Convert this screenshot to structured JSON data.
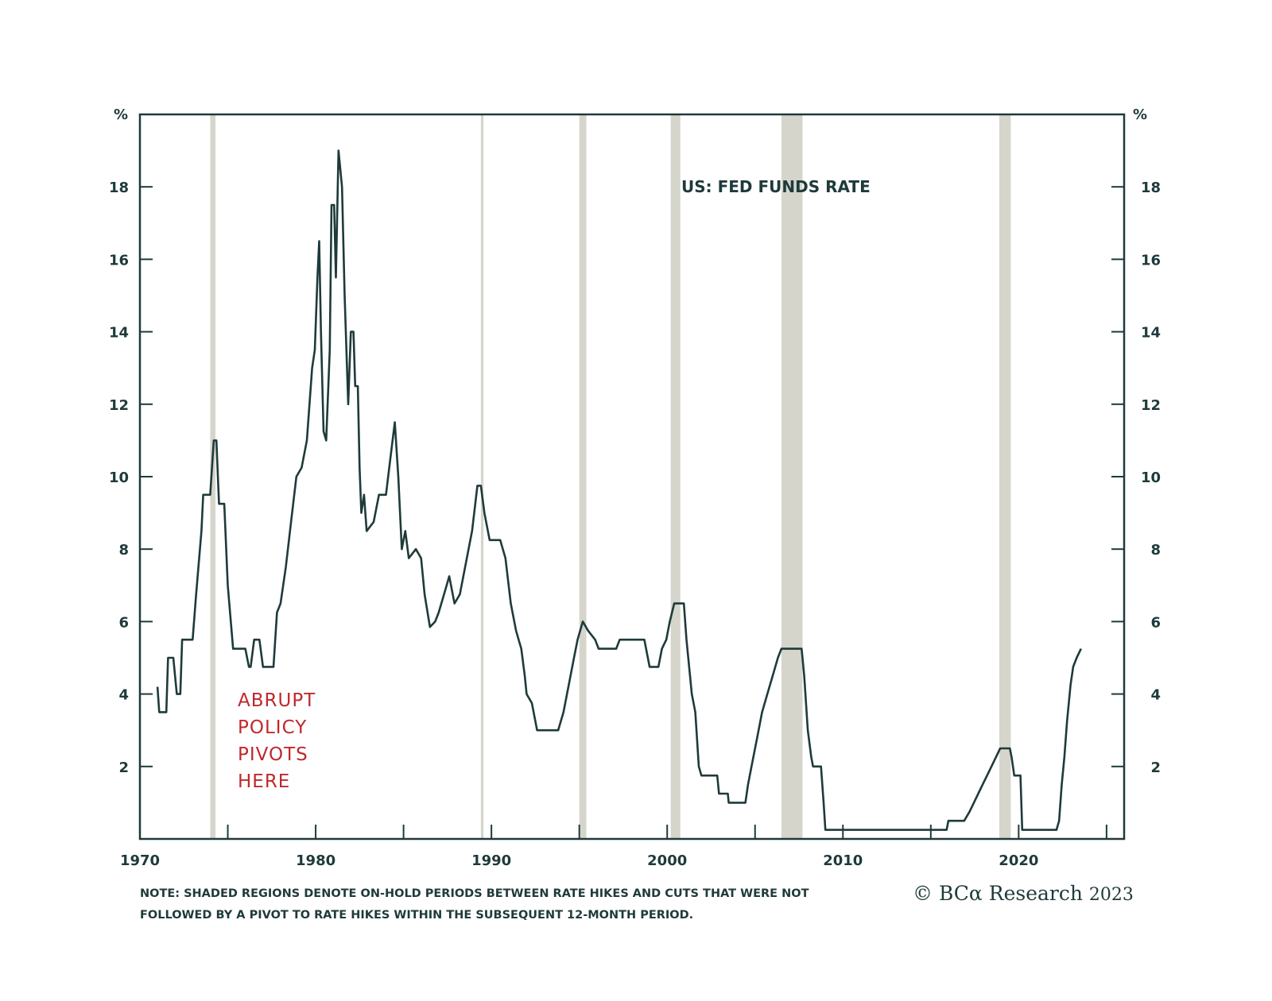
{
  "chart_data": {
    "type": "line",
    "title": "US: FED FUNDS RATE",
    "y_unit_left": "%",
    "y_unit_right": "%",
    "xlim": [
      1970,
      2026
    ],
    "ylim": [
      0,
      20
    ],
    "x_ticks": [
      1970,
      1980,
      1990,
      2000,
      2010,
      2020
    ],
    "y_ticks": [
      2,
      4,
      6,
      8,
      10,
      12,
      14,
      16,
      18
    ],
    "grid": false,
    "colors": {
      "line": "#1f3a3a",
      "shade": "#d5d5cc",
      "annotation": "#c0282d",
      "axis": "#1f3a3a"
    },
    "annotation": [
      "ABRUPT",
      "POLICY",
      "PIVOTS",
      "HERE"
    ],
    "shaded_periods": [
      {
        "start": 1974.0,
        "end": 1974.3
      },
      {
        "start": 1989.4,
        "end": 1989.55
      },
      {
        "start": 1995.0,
        "end": 1995.4
      },
      {
        "start": 2000.2,
        "end": 2000.75
      },
      {
        "start": 2006.5,
        "end": 2007.7
      },
      {
        "start": 2018.9,
        "end": 2019.55
      }
    ],
    "series": [
      {
        "name": "",
        "points": [
          [
            1971.0,
            4.2
          ],
          [
            1971.1,
            3.5
          ],
          [
            1971.5,
            3.5
          ],
          [
            1971.6,
            5.0
          ],
          [
            1971.9,
            5.0
          ],
          [
            1972.1,
            4.0
          ],
          [
            1972.3,
            4.0
          ],
          [
            1972.4,
            5.5
          ],
          [
            1973.0,
            5.5
          ],
          [
            1973.2,
            6.75
          ],
          [
            1973.5,
            8.5
          ],
          [
            1973.6,
            9.5
          ],
          [
            1974.0,
            9.5
          ],
          [
            1974.2,
            11.0
          ],
          [
            1974.35,
            11.0
          ],
          [
            1974.5,
            9.25
          ],
          [
            1974.8,
            9.25
          ],
          [
            1975.0,
            7.0
          ],
          [
            1975.3,
            5.25
          ],
          [
            1976.0,
            5.25
          ],
          [
            1976.2,
            4.75
          ],
          [
            1976.3,
            4.75
          ],
          [
            1976.5,
            5.5
          ],
          [
            1976.8,
            5.5
          ],
          [
            1977.0,
            4.75
          ],
          [
            1977.6,
            4.75
          ],
          [
            1977.8,
            6.25
          ],
          [
            1978.0,
            6.5
          ],
          [
            1978.3,
            7.5
          ],
          [
            1978.6,
            8.75
          ],
          [
            1978.9,
            10.0
          ],
          [
            1979.2,
            10.25
          ],
          [
            1979.5,
            11.0
          ],
          [
            1979.8,
            13.0
          ],
          [
            1979.95,
            13.5
          ],
          [
            1980.1,
            15.5
          ],
          [
            1980.2,
            16.5
          ],
          [
            1980.3,
            14.0
          ],
          [
            1980.45,
            11.25
          ],
          [
            1980.6,
            11.0
          ],
          [
            1980.8,
            13.5
          ],
          [
            1980.9,
            17.5
          ],
          [
            1981.05,
            17.5
          ],
          [
            1981.15,
            15.5
          ],
          [
            1981.3,
            19.0
          ],
          [
            1981.5,
            18.0
          ],
          [
            1981.65,
            15.0
          ],
          [
            1981.85,
            12.0
          ],
          [
            1982.0,
            14.0
          ],
          [
            1982.15,
            14.0
          ],
          [
            1982.25,
            12.5
          ],
          [
            1982.4,
            12.5
          ],
          [
            1982.5,
            10.25
          ],
          [
            1982.6,
            9.0
          ],
          [
            1982.75,
            9.5
          ],
          [
            1982.9,
            8.5
          ],
          [
            1983.3,
            8.75
          ],
          [
            1983.6,
            9.5
          ],
          [
            1984.0,
            9.5
          ],
          [
            1984.25,
            10.5
          ],
          [
            1984.5,
            11.5
          ],
          [
            1984.7,
            10.0
          ],
          [
            1984.9,
            8.0
          ],
          [
            1985.1,
            8.5
          ],
          [
            1985.3,
            7.75
          ],
          [
            1985.7,
            8.0
          ],
          [
            1986.0,
            7.75
          ],
          [
            1986.2,
            6.75
          ],
          [
            1986.5,
            5.85
          ],
          [
            1986.8,
            6.0
          ],
          [
            1987.0,
            6.25
          ],
          [
            1987.3,
            6.75
          ],
          [
            1987.6,
            7.25
          ],
          [
            1987.9,
            6.5
          ],
          [
            1988.2,
            6.75
          ],
          [
            1988.6,
            7.75
          ],
          [
            1988.9,
            8.5
          ],
          [
            1989.2,
            9.75
          ],
          [
            1989.4,
            9.75
          ],
          [
            1989.6,
            9.0
          ],
          [
            1989.9,
            8.25
          ],
          [
            1990.5,
            8.25
          ],
          [
            1990.8,
            7.75
          ],
          [
            1991.1,
            6.5
          ],
          [
            1991.4,
            5.75
          ],
          [
            1991.7,
            5.25
          ],
          [
            1991.9,
            4.5
          ],
          [
            1992.0,
            4.0
          ],
          [
            1992.3,
            3.75
          ],
          [
            1992.6,
            3.0
          ],
          [
            1993.8,
            3.0
          ],
          [
            1994.1,
            3.5
          ],
          [
            1994.4,
            4.25
          ],
          [
            1994.7,
            5.0
          ],
          [
            1994.9,
            5.5
          ],
          [
            1995.2,
            6.0
          ],
          [
            1995.5,
            5.75
          ],
          [
            1995.9,
            5.5
          ],
          [
            1996.1,
            5.25
          ],
          [
            1997.1,
            5.25
          ],
          [
            1997.3,
            5.5
          ],
          [
            1998.7,
            5.5
          ],
          [
            1998.9,
            5.0
          ],
          [
            1999.0,
            4.75
          ],
          [
            1999.5,
            4.75
          ],
          [
            1999.7,
            5.25
          ],
          [
            1999.95,
            5.5
          ],
          [
            2000.15,
            6.0
          ],
          [
            2000.4,
            6.5
          ],
          [
            2000.95,
            6.5
          ],
          [
            2001.1,
            5.5
          ],
          [
            2001.4,
            4.0
          ],
          [
            2001.6,
            3.5
          ],
          [
            2001.8,
            2.0
          ],
          [
            2001.95,
            1.75
          ],
          [
            2002.85,
            1.75
          ],
          [
            2002.95,
            1.25
          ],
          [
            2003.45,
            1.25
          ],
          [
            2003.5,
            1.0
          ],
          [
            2004.45,
            1.0
          ],
          [
            2004.6,
            1.5
          ],
          [
            2004.8,
            2.0
          ],
          [
            2005.1,
            2.75
          ],
          [
            2005.4,
            3.5
          ],
          [
            2005.7,
            4.0
          ],
          [
            2006.0,
            4.5
          ],
          [
            2006.3,
            5.0
          ],
          [
            2006.5,
            5.25
          ],
          [
            2007.65,
            5.25
          ],
          [
            2007.8,
            4.5
          ],
          [
            2008.0,
            3.0
          ],
          [
            2008.2,
            2.25
          ],
          [
            2008.3,
            2.0
          ],
          [
            2008.75,
            2.0
          ],
          [
            2008.9,
            1.0
          ],
          [
            2009.0,
            0.25
          ],
          [
            2015.9,
            0.25
          ],
          [
            2016.0,
            0.5
          ],
          [
            2016.9,
            0.5
          ],
          [
            2017.2,
            0.75
          ],
          [
            2017.45,
            1.0
          ],
          [
            2017.7,
            1.25
          ],
          [
            2017.95,
            1.5
          ],
          [
            2018.2,
            1.75
          ],
          [
            2018.45,
            2.0
          ],
          [
            2018.7,
            2.25
          ],
          [
            2018.95,
            2.5
          ],
          [
            2019.5,
            2.5
          ],
          [
            2019.6,
            2.25
          ],
          [
            2019.75,
            1.75
          ],
          [
            2020.1,
            1.75
          ],
          [
            2020.2,
            0.25
          ],
          [
            2022.15,
            0.25
          ],
          [
            2022.3,
            0.5
          ],
          [
            2022.45,
            1.5
          ],
          [
            2022.6,
            2.25
          ],
          [
            2022.75,
            3.25
          ],
          [
            2022.95,
            4.25
          ],
          [
            2023.1,
            4.75
          ],
          [
            2023.3,
            5.0
          ],
          [
            2023.55,
            5.25
          ]
        ]
      }
    ]
  },
  "note": {
    "line1": "NOTE: SHADED REGIONS DENOTE ON-HOLD PERIODS BETWEEN RATE HIKES AND CUTS THAT WERE NOT",
    "line2": "FOLLOWED BY A PIVOT TO RATE HIKES WITHIN THE SUBSEQUENT 12-MONTH PERIOD."
  },
  "credit": {
    "symbol": "©",
    "brand": "BCα Research",
    "year": "2023"
  }
}
